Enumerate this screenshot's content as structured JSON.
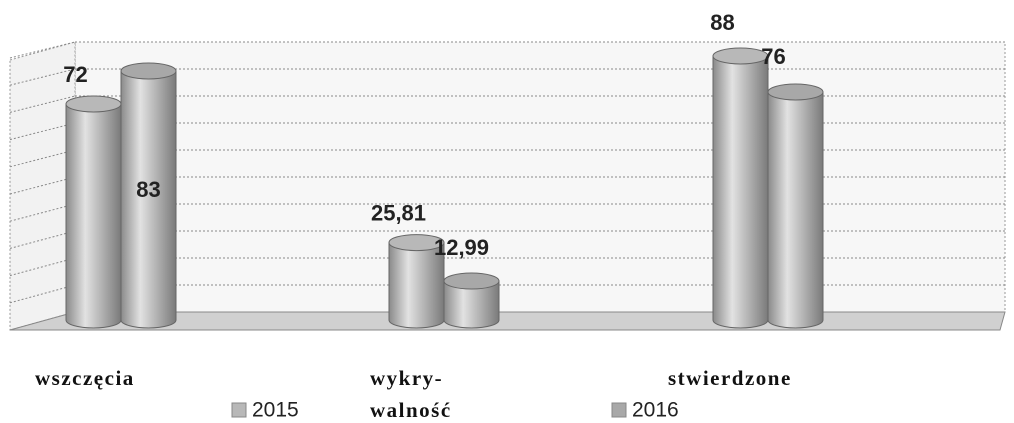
{
  "chart_data": {
    "type": "bar",
    "categories": [
      "wszczęcia",
      "wykry-\nwalność",
      "stwierdzone"
    ],
    "series": [
      {
        "name": "2015",
        "color": "#b8b8b8",
        "values": [
          72,
          25.81,
          88
        ],
        "value_labels": [
          "72",
          "25,81",
          "88"
        ]
      },
      {
        "name": "2016",
        "color": "#a8a8a8",
        "values": [
          83,
          12.99,
          76
        ],
        "value_labels": [
          "83",
          "12,99",
          "76"
        ]
      }
    ],
    "ylim": [
      0,
      100
    ],
    "grid": true
  }
}
